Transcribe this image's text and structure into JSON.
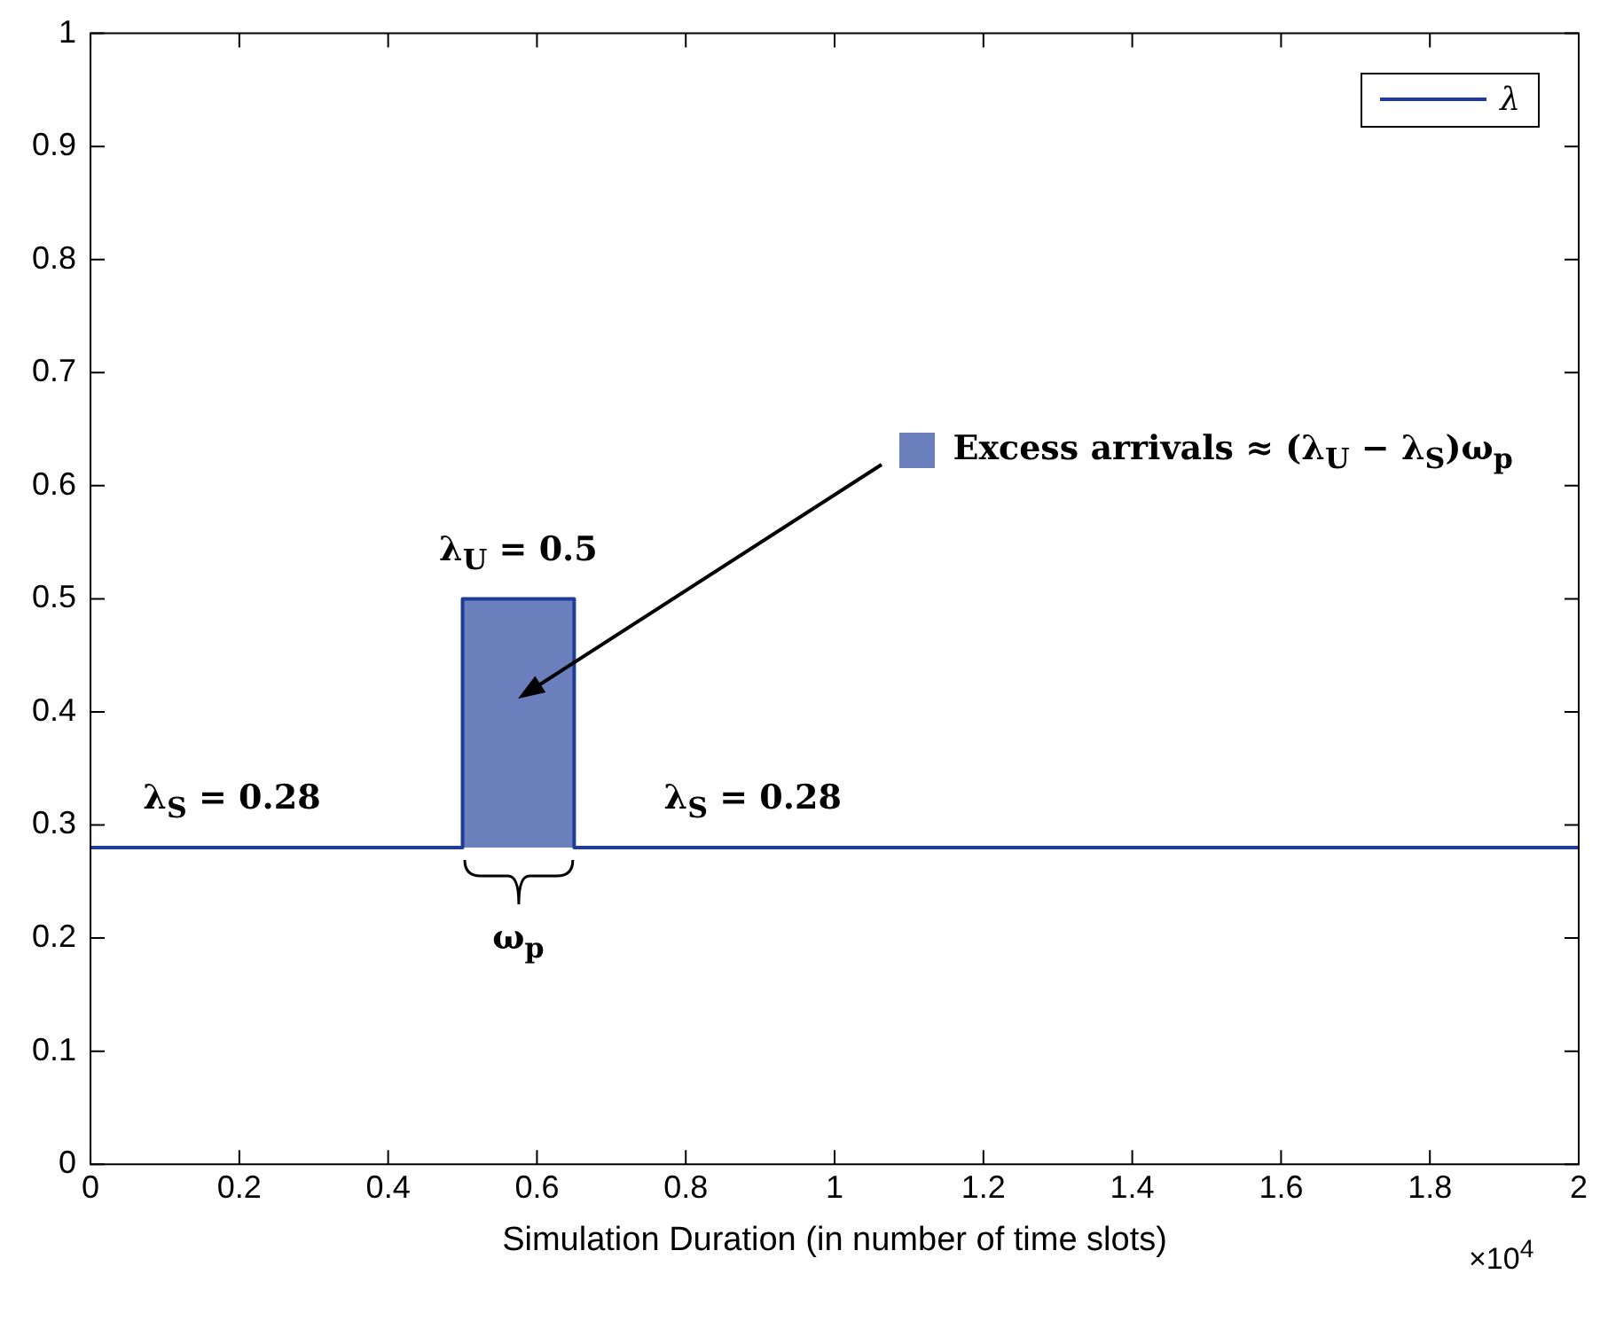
{
  "chart_data": {
    "type": "step",
    "xlabel": "Simulation Duration (in number of time slots)",
    "xlim": [
      0,
      2
    ],
    "xticks": [
      0,
      0.2,
      0.4,
      0.6,
      0.8,
      1,
      1.2,
      1.4,
      1.6,
      1.8,
      2
    ],
    "ylim": [
      0,
      1
    ],
    "yticks": [
      0,
      0.1,
      0.2,
      0.3,
      0.4,
      0.5,
      0.6,
      0.7,
      0.8,
      0.9,
      1
    ],
    "grid": false,
    "legend": "top right",
    "series": [
      {
        "name": "λ",
        "color": "#1f3c99",
        "x": [
          0,
          0.5,
          0.65,
          2
        ],
        "values": [
          0.28,
          0.5,
          0.28,
          0.28
        ],
        "lower": [
          null,
          0.28,
          0.28,
          null
        ],
        "upper": [
          null,
          0.5,
          0.5,
          null
        ]
      }
    ],
    "annotations": [
      "λ$_{S}$ = 0.28",
      "λ$_{S}$ = 0.28",
      "λ$_{U}$ = 0.5",
      "ω$_{p}$",
      "Excess arrivals ≈ (λ$_{U}$ − λ$_{S}$)ω$_{p}$",
      "×10$^{4}$"
    ]
  }
}
